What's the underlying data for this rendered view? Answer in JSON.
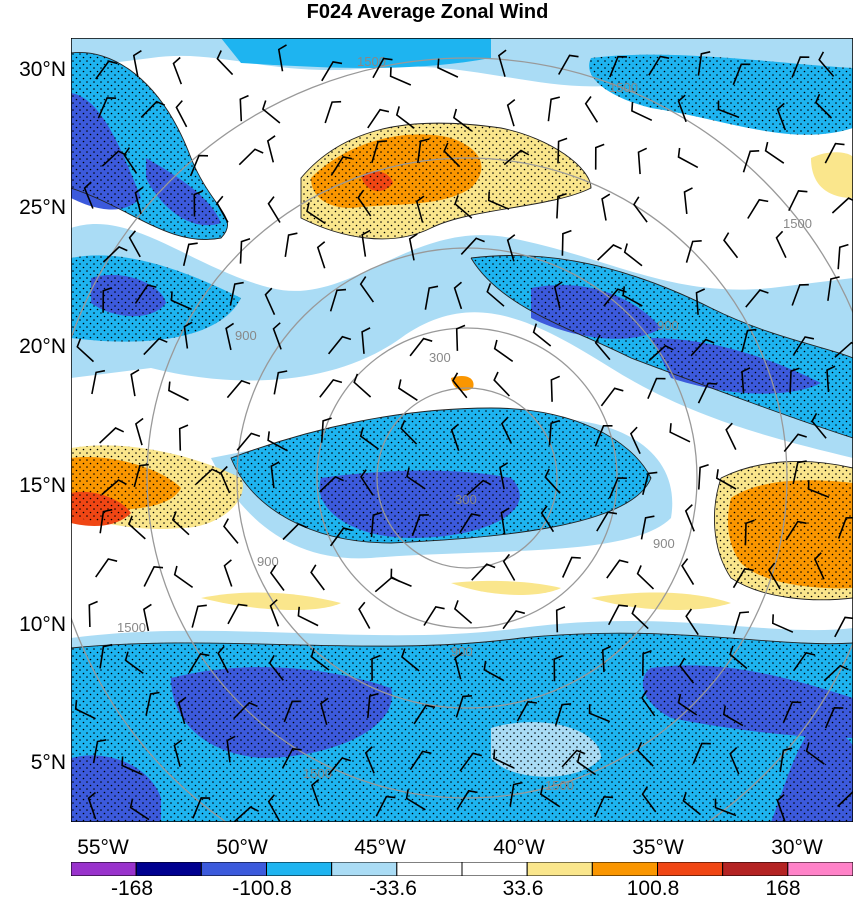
{
  "title": "F024 Average Zonal Wind",
  "lat_labels": [
    "30°N",
    "25°N",
    "20°N",
    "15°N",
    "10°N",
    "5°N"
  ],
  "lon_labels": [
    "55°W",
    "50°W",
    "45°W",
    "40°W",
    "35°W",
    "30°W"
  ],
  "colorbar": {
    "labels": [
      "-168",
      "-100.8",
      "-33.6",
      "33.6",
      "100.8",
      "168"
    ],
    "colors": [
      "#9932cc",
      "#000090",
      "#3c5adc",
      "#1eb4f0",
      "#aadcf5",
      "#ffffff",
      "#ffffff",
      "#fae68c",
      "#fa9600",
      "#f04614",
      "#b42323",
      "#ff82c8"
    ]
  },
  "range_ring_labels": [
    "300",
    "300",
    "900",
    "900",
    "900",
    "900",
    "900",
    "1500",
    "1500",
    "1500",
    "1500",
    "1500",
    "1500"
  ],
  "colors": {
    "ring": "#999999",
    "contour": "#222222",
    "barb": "#000000"
  }
}
